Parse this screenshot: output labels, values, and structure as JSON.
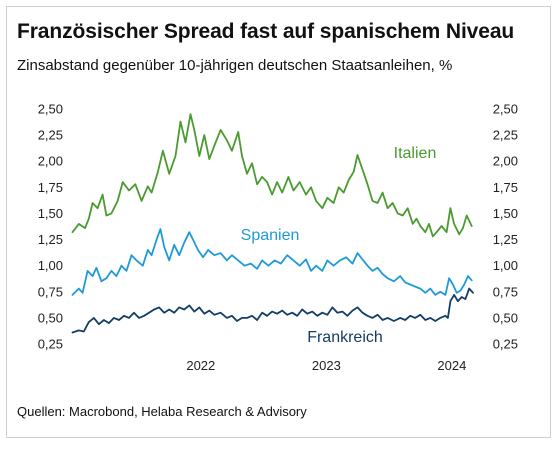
{
  "header": {
    "title": "Französischer Spread fast auf spanischem Niveau",
    "subtitle": "Zinsabstand gegenüber 10-jährigen deutschen Staatsanleihen, %"
  },
  "footer": {
    "source": "Quellen: Macrobond, Helaba Research & Advisory"
  },
  "chart_data": {
    "type": "line",
    "title": "Französischer Spread fast auf spanischem Niveau",
    "subtitle": "Zinsabstand gegenüber 10-jährigen deutschen Staatsanleihen, %",
    "xlabel": "",
    "ylabel": "",
    "ylim": [
      0.25,
      2.5
    ],
    "y_ticks": [
      "0,25",
      "0,50",
      "0,75",
      "1,00",
      "1,25",
      "1,50",
      "1,75",
      "2,00",
      "2,25",
      "2,50"
    ],
    "y_tick_values": [
      0.25,
      0.5,
      0.75,
      1.0,
      1.25,
      1.5,
      1.75,
      2.0,
      2.25,
      2.5
    ],
    "y_axis_sides": "both",
    "x_ticks": [
      "2022",
      "2023",
      "2024"
    ],
    "x_tick_values": [
      2022.0,
      2023.0,
      2024.0
    ],
    "xlim": [
      2021.45,
      2024.7
    ],
    "grid": false,
    "legend": "inline labels",
    "series": [
      {
        "name": "Italien",
        "color": "#4a9b2f",
        "points": [
          [
            2021.47,
            1.32
          ],
          [
            2021.52,
            1.4
          ],
          [
            2021.57,
            1.36
          ],
          [
            2021.6,
            1.45
          ],
          [
            2021.63,
            1.6
          ],
          [
            2021.67,
            1.55
          ],
          [
            2021.71,
            1.68
          ],
          [
            2021.74,
            1.48
          ],
          [
            2021.78,
            1.5
          ],
          [
            2021.83,
            1.62
          ],
          [
            2021.87,
            1.8
          ],
          [
            2021.92,
            1.72
          ],
          [
            2021.97,
            1.78
          ],
          [
            2022.02,
            1.62
          ],
          [
            2022.07,
            1.76
          ],
          [
            2022.1,
            1.7
          ],
          [
            2022.15,
            1.9
          ],
          [
            2022.19,
            2.1
          ],
          [
            2022.24,
            1.88
          ],
          [
            2022.29,
            2.05
          ],
          [
            2022.33,
            2.38
          ],
          [
            2022.37,
            2.18
          ],
          [
            2022.41,
            2.45
          ],
          [
            2022.44,
            2.3
          ],
          [
            2022.48,
            2.05
          ],
          [
            2022.52,
            2.25
          ],
          [
            2022.56,
            2.02
          ],
          [
            2022.6,
            2.15
          ],
          [
            2022.65,
            2.3
          ],
          [
            2022.7,
            2.2
          ],
          [
            2022.74,
            2.1
          ],
          [
            2022.79,
            2.28
          ],
          [
            2022.82,
            2.05
          ],
          [
            2022.86,
            1.88
          ],
          [
            2022.9,
            1.98
          ],
          [
            2022.94,
            1.78
          ],
          [
            2022.98,
            1.85
          ],
          [
            2023.02,
            1.8
          ],
          [
            2023.06,
            1.68
          ],
          [
            2023.1,
            1.8
          ],
          [
            2023.14,
            1.7
          ],
          [
            2023.19,
            1.85
          ],
          [
            2023.23,
            1.72
          ],
          [
            2023.28,
            1.8
          ],
          [
            2023.33,
            1.68
          ],
          [
            2023.37,
            1.75
          ],
          [
            2023.41,
            1.62
          ],
          [
            2023.46,
            1.55
          ],
          [
            2023.5,
            1.65
          ],
          [
            2023.55,
            1.6
          ],
          [
            2023.59,
            1.75
          ],
          [
            2023.63,
            1.7
          ],
          [
            2023.67,
            1.82
          ],
          [
            2023.71,
            1.9
          ],
          [
            2023.74,
            2.06
          ],
          [
            2023.78,
            1.92
          ],
          [
            2023.82,
            1.78
          ],
          [
            2023.86,
            1.62
          ],
          [
            2023.9,
            1.6
          ],
          [
            2023.94,
            1.7
          ],
          [
            2023.98,
            1.55
          ],
          [
            2024.02,
            1.6
          ],
          [
            2024.06,
            1.5
          ],
          [
            2024.1,
            1.48
          ],
          [
            2024.14,
            1.55
          ],
          [
            2024.18,
            1.4
          ],
          [
            2024.21,
            1.45
          ],
          [
            2024.24,
            1.38
          ],
          [
            2024.28,
            1.32
          ],
          [
            2024.31,
            1.4
          ],
          [
            2024.34,
            1.28
          ],
          [
            2024.37,
            1.32
          ],
          [
            2024.41,
            1.38
          ],
          [
            2024.45,
            1.32
          ],
          [
            2024.48,
            1.55
          ],
          [
            2024.51,
            1.4
          ],
          [
            2024.55,
            1.3
          ],
          [
            2024.58,
            1.36
          ],
          [
            2024.61,
            1.48
          ],
          [
            2024.65,
            1.38
          ]
        ]
      },
      {
        "name": "Spanien",
        "color": "#1e9bd7",
        "points": [
          [
            2021.47,
            0.72
          ],
          [
            2021.52,
            0.78
          ],
          [
            2021.55,
            0.74
          ],
          [
            2021.59,
            0.95
          ],
          [
            2021.63,
            0.9
          ],
          [
            2021.66,
            0.98
          ],
          [
            2021.7,
            0.85
          ],
          [
            2021.74,
            0.88
          ],
          [
            2021.78,
            0.95
          ],
          [
            2021.82,
            0.9
          ],
          [
            2021.86,
            1.0
          ],
          [
            2021.9,
            0.95
          ],
          [
            2021.94,
            1.1
          ],
          [
            2021.98,
            1.05
          ],
          [
            2022.03,
            1.0
          ],
          [
            2022.07,
            1.15
          ],
          [
            2022.1,
            1.1
          ],
          [
            2022.14,
            1.25
          ],
          [
            2022.17,
            1.35
          ],
          [
            2022.2,
            1.18
          ],
          [
            2022.24,
            1.05
          ],
          [
            2022.28,
            1.2
          ],
          [
            2022.32,
            1.1
          ],
          [
            2022.36,
            1.22
          ],
          [
            2022.4,
            1.32
          ],
          [
            2022.43,
            1.25
          ],
          [
            2022.47,
            1.15
          ],
          [
            2022.51,
            1.08
          ],
          [
            2022.55,
            1.15
          ],
          [
            2022.6,
            1.1
          ],
          [
            2022.65,
            1.12
          ],
          [
            2022.7,
            1.05
          ],
          [
            2022.74,
            1.1
          ],
          [
            2022.79,
            1.05
          ],
          [
            2022.84,
            1.0
          ],
          [
            2022.89,
            1.02
          ],
          [
            2022.94,
            0.97
          ],
          [
            2022.98,
            1.05
          ],
          [
            2023.03,
            1.0
          ],
          [
            2023.08,
            1.05
          ],
          [
            2023.13,
            1.02
          ],
          [
            2023.18,
            1.1
          ],
          [
            2023.23,
            1.05
          ],
          [
            2023.28,
            1.0
          ],
          [
            2023.33,
            1.06
          ],
          [
            2023.37,
            0.95
          ],
          [
            2023.41,
            1.0
          ],
          [
            2023.46,
            0.95
          ],
          [
            2023.5,
            1.05
          ],
          [
            2023.55,
            1.0
          ],
          [
            2023.6,
            1.05
          ],
          [
            2023.65,
            1.08
          ],
          [
            2023.7,
            1.02
          ],
          [
            2023.74,
            1.12
          ],
          [
            2023.78,
            1.06
          ],
          [
            2023.82,
            1.0
          ],
          [
            2023.86,
            0.95
          ],
          [
            2023.9,
            0.98
          ],
          [
            2023.94,
            0.92
          ],
          [
            2023.98,
            0.88
          ],
          [
            2024.03,
            0.85
          ],
          [
            2024.08,
            0.9
          ],
          [
            2024.12,
            0.84
          ],
          [
            2024.16,
            0.82
          ],
          [
            2024.2,
            0.8
          ],
          [
            2024.24,
            0.78
          ],
          [
            2024.28,
            0.74
          ],
          [
            2024.32,
            0.78
          ],
          [
            2024.36,
            0.72
          ],
          [
            2024.4,
            0.75
          ],
          [
            2024.44,
            0.72
          ],
          [
            2024.47,
            0.88
          ],
          [
            2024.5,
            0.82
          ],
          [
            2024.53,
            0.74
          ],
          [
            2024.56,
            0.76
          ],
          [
            2024.59,
            0.82
          ],
          [
            2024.62,
            0.9
          ],
          [
            2024.65,
            0.86
          ]
        ]
      },
      {
        "name": "Frankreich",
        "color": "#133d66",
        "points": [
          [
            2021.47,
            0.36
          ],
          [
            2021.52,
            0.38
          ],
          [
            2021.56,
            0.37
          ],
          [
            2021.6,
            0.46
          ],
          [
            2021.64,
            0.5
          ],
          [
            2021.68,
            0.44
          ],
          [
            2021.72,
            0.48
          ],
          [
            2021.76,
            0.45
          ],
          [
            2021.8,
            0.5
          ],
          [
            2021.84,
            0.48
          ],
          [
            2021.88,
            0.52
          ],
          [
            2021.92,
            0.5
          ],
          [
            2021.96,
            0.55
          ],
          [
            2022.0,
            0.5
          ],
          [
            2022.04,
            0.52
          ],
          [
            2022.08,
            0.55
          ],
          [
            2022.12,
            0.58
          ],
          [
            2022.16,
            0.6
          ],
          [
            2022.2,
            0.55
          ],
          [
            2022.24,
            0.58
          ],
          [
            2022.28,
            0.55
          ],
          [
            2022.32,
            0.6
          ],
          [
            2022.36,
            0.58
          ],
          [
            2022.4,
            0.62
          ],
          [
            2022.44,
            0.56
          ],
          [
            2022.48,
            0.6
          ],
          [
            2022.52,
            0.54
          ],
          [
            2022.56,
            0.57
          ],
          [
            2022.6,
            0.53
          ],
          [
            2022.65,
            0.55
          ],
          [
            2022.7,
            0.5
          ],
          [
            2022.74,
            0.52
          ],
          [
            2022.78,
            0.47
          ],
          [
            2022.82,
            0.5
          ],
          [
            2022.86,
            0.5
          ],
          [
            2022.9,
            0.52
          ],
          [
            2022.94,
            0.48
          ],
          [
            2022.98,
            0.55
          ],
          [
            2023.02,
            0.52
          ],
          [
            2023.06,
            0.56
          ],
          [
            2023.1,
            0.54
          ],
          [
            2023.14,
            0.57
          ],
          [
            2023.18,
            0.53
          ],
          [
            2023.22,
            0.55
          ],
          [
            2023.26,
            0.52
          ],
          [
            2023.3,
            0.58
          ],
          [
            2023.34,
            0.54
          ],
          [
            2023.38,
            0.56
          ],
          [
            2023.42,
            0.52
          ],
          [
            2023.46,
            0.55
          ],
          [
            2023.5,
            0.53
          ],
          [
            2023.54,
            0.6
          ],
          [
            2023.58,
            0.55
          ],
          [
            2023.62,
            0.56
          ],
          [
            2023.66,
            0.52
          ],
          [
            2023.7,
            0.57
          ],
          [
            2023.74,
            0.6
          ],
          [
            2023.78,
            0.55
          ],
          [
            2023.82,
            0.52
          ],
          [
            2023.86,
            0.5
          ],
          [
            2023.9,
            0.53
          ],
          [
            2023.94,
            0.48
          ],
          [
            2023.98,
            0.5
          ],
          [
            2024.03,
            0.47
          ],
          [
            2024.08,
            0.5
          ],
          [
            2024.12,
            0.48
          ],
          [
            2024.16,
            0.52
          ],
          [
            2024.2,
            0.5
          ],
          [
            2024.24,
            0.53
          ],
          [
            2024.28,
            0.48
          ],
          [
            2024.32,
            0.5
          ],
          [
            2024.36,
            0.47
          ],
          [
            2024.4,
            0.5
          ],
          [
            2024.44,
            0.52
          ],
          [
            2024.46,
            0.5
          ],
          [
            2024.48,
            0.66
          ],
          [
            2024.51,
            0.72
          ],
          [
            2024.54,
            0.66
          ],
          [
            2024.57,
            0.7
          ],
          [
            2024.6,
            0.68
          ],
          [
            2024.63,
            0.78
          ],
          [
            2024.66,
            0.74
          ]
        ]
      }
    ]
  }
}
